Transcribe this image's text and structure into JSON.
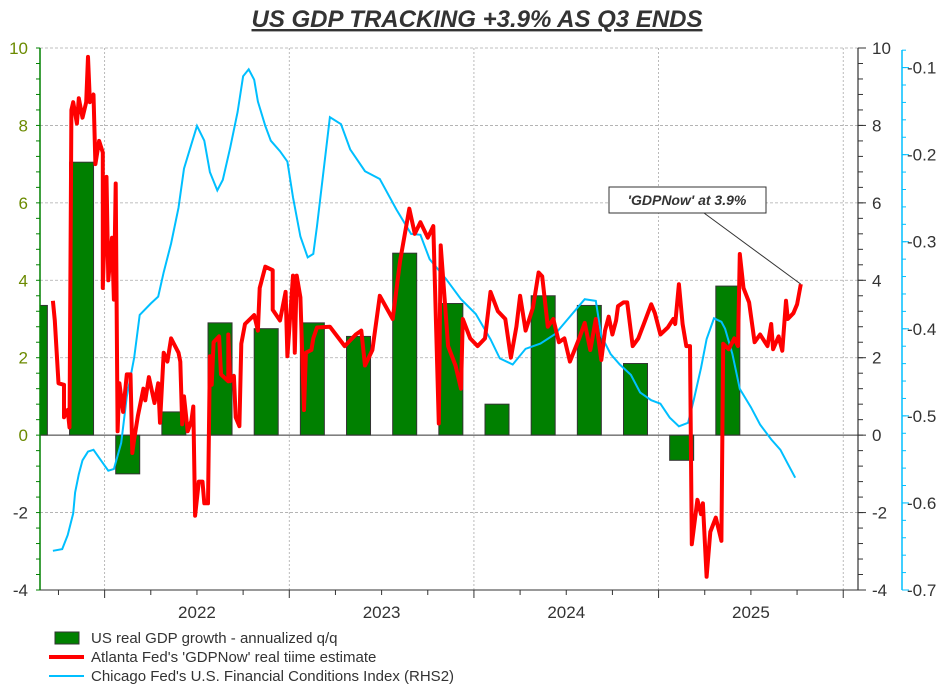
{
  "chart_data": {
    "type": "bar+line",
    "title": "US GDP TRACKING +3.9% AS Q3 ENDS",
    "xlabel": "",
    "x_tick_labels": [
      "2022",
      "2023",
      "2024",
      "2025"
    ],
    "xlim": [
      2021.65,
      2026.08
    ],
    "left_axis": {
      "ylim": [
        -4,
        10
      ],
      "ticks": [
        10,
        8,
        6,
        4,
        2,
        0,
        -2,
        -4
      ],
      "labels": [
        "10",
        "8",
        "6",
        "4",
        "2",
        "0",
        "-2",
        "-4"
      ]
    },
    "right_axis": {
      "ylim": [
        -4,
        10
      ],
      "ticks": [
        10,
        8,
        6,
        4,
        2,
        0,
        -2,
        -4
      ],
      "labels": [
        "10",
        "8",
        "6",
        "4",
        "2",
        "0",
        "-2",
        "-4"
      ]
    },
    "rhs2_axis": {
      "ylim": [
        -0.7,
        -0.0775
      ],
      "ticks": [
        -0.1,
        -0.2,
        -0.3,
        -0.4,
        -0.5,
        -0.6,
        -0.7
      ],
      "labels": [
        "-0.1",
        "-0.2",
        "-0.3",
        "-0.4",
        "-0.5",
        "-0.6",
        "-0.7"
      ]
    },
    "grid": true,
    "legend_position": "bottom-left",
    "colors": {
      "bars": "#008000",
      "gdpnow": "#ff0000",
      "fci": "#00bfff",
      "left_axis": "#008000",
      "rhs2_axis": "#00bfff"
    },
    "bars": {
      "name": "US real GDP growth - annualized q/q",
      "categories": [
        "2021 Q3",
        "2021 Q4",
        "2022 Q1",
        "2022 Q2",
        "2022 Q3",
        "2022 Q4",
        "2023 Q1",
        "2023 Q2",
        "2023 Q3",
        "2023 Q4",
        "2024 Q1",
        "2024 Q2",
        "2024 Q3",
        "2024 Q4",
        "2025 Q1",
        "2025 Q2"
      ],
      "values": [
        3.35,
        7.05,
        -1.0,
        0.6,
        2.9,
        2.75,
        2.9,
        2.55,
        4.7,
        3.4,
        0.8,
        3.6,
        3.35,
        1.85,
        -0.65,
        3.85
      ]
    },
    "series": [
      {
        "name": "Atlanta Fed's 'GDPNow' real tiime estimate",
        "axis": "left",
        "points": [
          [
            2021.72,
            3.47
          ],
          [
            2021.73,
            2.96
          ],
          [
            2021.75,
            1.34
          ],
          [
            2021.78,
            1.3
          ],
          [
            2021.78,
            0.46
          ],
          [
            2021.8,
            0.65
          ],
          [
            2021.81,
            0.2
          ],
          [
            2021.82,
            8.4
          ],
          [
            2021.83,
            8.6
          ],
          [
            2021.85,
            8.05
          ],
          [
            2021.86,
            8.7
          ],
          [
            2021.88,
            8.2
          ],
          [
            2021.9,
            8.6
          ],
          [
            2021.91,
            9.77
          ],
          [
            2021.92,
            8.6
          ],
          [
            2021.94,
            8.8
          ],
          [
            2021.95,
            7.0
          ],
          [
            2021.97,
            7.6
          ],
          [
            2021.99,
            7.3
          ],
          [
            2021.99,
            3.8
          ],
          [
            2022.01,
            6.67
          ],
          [
            2022.02,
            4.0
          ],
          [
            2022.04,
            5.1
          ],
          [
            2022.05,
            3.5
          ],
          [
            2022.06,
            6.5
          ],
          [
            2022.07,
            0.1
          ],
          [
            2022.08,
            1.34
          ],
          [
            2022.1,
            0.6
          ],
          [
            2022.12,
            1.57
          ],
          [
            2022.14,
            1.57
          ],
          [
            2022.15,
            -0.46
          ],
          [
            2022.16,
            -0.1
          ],
          [
            2022.18,
            0.5
          ],
          [
            2022.21,
            1.2
          ],
          [
            2022.22,
            0.9
          ],
          [
            2022.24,
            1.5
          ],
          [
            2022.27,
            0.83
          ],
          [
            2022.29,
            1.34
          ],
          [
            2022.3,
            0.32
          ],
          [
            2022.32,
            2.13
          ],
          [
            2022.34,
            1.9
          ],
          [
            2022.36,
            2.5
          ],
          [
            2022.4,
            2.13
          ],
          [
            2022.41,
            1.9
          ],
          [
            2022.42,
            0.28
          ],
          [
            2022.43,
            1.0
          ],
          [
            2022.45,
            0.1
          ],
          [
            2022.47,
            0.37
          ],
          [
            2022.48,
            0.74
          ],
          [
            2022.49,
            -2.08
          ],
          [
            2022.51,
            -1.2
          ],
          [
            2022.53,
            -1.2
          ],
          [
            2022.54,
            -1.76
          ],
          [
            2022.56,
            -1.76
          ],
          [
            2022.57,
            2.04
          ],
          [
            2022.58,
            1.3
          ],
          [
            2022.59,
            2.4
          ],
          [
            2022.62,
            2.55
          ],
          [
            2022.63,
            1.57
          ],
          [
            2022.67,
            1.39
          ],
          [
            2022.67,
            2.6
          ],
          [
            2022.68,
            1.39
          ],
          [
            2022.7,
            1.53
          ],
          [
            2022.71,
            0.46
          ],
          [
            2022.73,
            0.23
          ],
          [
            2022.74,
            2.36
          ],
          [
            2022.76,
            2.87
          ],
          [
            2022.81,
            3.1
          ],
          [
            2022.83,
            2.7
          ],
          [
            2022.84,
            3.8
          ],
          [
            2022.87,
            4.35
          ],
          [
            2022.91,
            4.26
          ],
          [
            2022.91,
            3.24
          ],
          [
            2022.95,
            2.96
          ],
          [
            2022.98,
            3.7
          ],
          [
            2022.99,
            2.04
          ],
          [
            2023.02,
            4.12
          ],
          [
            2023.03,
            2.13
          ],
          [
            2023.04,
            4.12
          ],
          [
            2023.06,
            3.56
          ],
          [
            2023.08,
            0.65
          ],
          [
            2023.09,
            2.13
          ],
          [
            2023.12,
            2.2
          ],
          [
            2023.13,
            2.5
          ],
          [
            2023.15,
            2.78
          ],
          [
            2023.22,
            2.8
          ],
          [
            2023.3,
            2.3
          ],
          [
            2023.36,
            2.6
          ],
          [
            2023.39,
            2.7
          ],
          [
            2023.41,
            1.8
          ],
          [
            2023.45,
            2.2
          ],
          [
            2023.49,
            3.6
          ],
          [
            2023.56,
            3.0
          ],
          [
            2023.6,
            4.5
          ],
          [
            2023.65,
            5.85
          ],
          [
            2023.68,
            5.2
          ],
          [
            2023.71,
            5.5
          ],
          [
            2023.75,
            5.1
          ],
          [
            2023.78,
            5.4
          ],
          [
            2023.81,
            0.3
          ],
          [
            2023.82,
            4.9
          ],
          [
            2023.86,
            2.3
          ],
          [
            2023.9,
            1.8
          ],
          [
            2023.93,
            1.2
          ],
          [
            2023.94,
            3.0
          ],
          [
            2023.98,
            2.5
          ],
          [
            2024.02,
            2.3
          ],
          [
            2024.06,
            2.5
          ],
          [
            2024.09,
            3.7
          ],
          [
            2024.13,
            3.2
          ],
          [
            2024.17,
            3.0
          ],
          [
            2024.2,
            2.0
          ],
          [
            2024.23,
            2.8
          ],
          [
            2024.25,
            3.6
          ],
          [
            2024.28,
            2.7
          ],
          [
            2024.32,
            3.3
          ],
          [
            2024.35,
            4.2
          ],
          [
            2024.37,
            4.1
          ],
          [
            2024.4,
            2.8
          ],
          [
            2024.43,
            3.0
          ],
          [
            2024.46,
            2.4
          ],
          [
            2024.49,
            2.5
          ],
          [
            2024.52,
            1.9
          ],
          [
            2024.57,
            2.5
          ],
          [
            2024.6,
            2.9
          ],
          [
            2024.63,
            2.2
          ],
          [
            2024.66,
            3.0
          ],
          [
            2024.69,
            1.94
          ],
          [
            2024.71,
            2.7
          ],
          [
            2024.73,
            3.06
          ],
          [
            2024.75,
            2.6
          ],
          [
            2024.77,
            2.96
          ],
          [
            2024.78,
            3.33
          ],
          [
            2024.81,
            3.43
          ],
          [
            2024.83,
            3.43
          ],
          [
            2024.86,
            2.3
          ],
          [
            2024.89,
            2.5
          ],
          [
            2024.92,
            2.87
          ],
          [
            2024.96,
            3.38
          ],
          [
            2024.98,
            3.15
          ],
          [
            2025.01,
            2.6
          ],
          [
            2025.05,
            2.78
          ],
          [
            2025.08,
            3.0
          ],
          [
            2025.09,
            2.87
          ],
          [
            2025.11,
            3.9
          ],
          [
            2025.13,
            2.87
          ],
          [
            2025.15,
            2.3
          ],
          [
            2025.17,
            2.3
          ],
          [
            2025.18,
            -2.82
          ],
          [
            2025.21,
            -1.67
          ],
          [
            2025.23,
            -2.04
          ],
          [
            2025.24,
            -1.76
          ],
          [
            2025.26,
            -3.66
          ],
          [
            2025.28,
            -2.5
          ],
          [
            2025.31,
            -2.13
          ],
          [
            2025.34,
            -2.73
          ],
          [
            2025.35,
            2.36
          ],
          [
            2025.38,
            2.22
          ],
          [
            2025.41,
            2.5
          ],
          [
            2025.43,
            2.3
          ],
          [
            2025.44,
            4.68
          ],
          [
            2025.46,
            3.8
          ],
          [
            2025.49,
            3.43
          ],
          [
            2025.52,
            2.4
          ],
          [
            2025.55,
            2.6
          ],
          [
            2025.59,
            2.3
          ],
          [
            2025.61,
            2.87
          ],
          [
            2025.62,
            2.22
          ],
          [
            2025.65,
            2.55
          ],
          [
            2025.67,
            2.18
          ],
          [
            2025.69,
            3.47
          ],
          [
            2025.7,
            3.0
          ],
          [
            2025.73,
            3.15
          ],
          [
            2025.75,
            3.38
          ],
          [
            2025.77,
            3.9
          ]
        ]
      },
      {
        "name": "Chicago Fed's U.S. Financial Conditions Index (RHS2)",
        "axis": "rhs2",
        "points": [
          [
            2021.72,
            -0.655
          ],
          [
            2021.77,
            -0.653
          ],
          [
            2021.8,
            -0.637
          ],
          [
            2021.83,
            -0.612
          ],
          [
            2021.84,
            -0.588
          ],
          [
            2021.86,
            -0.567
          ],
          [
            2021.88,
            -0.551
          ],
          [
            2021.91,
            -0.541
          ],
          [
            2021.94,
            -0.539
          ],
          [
            2021.98,
            -0.551
          ],
          [
            2022.02,
            -0.563
          ],
          [
            2022.05,
            -0.561
          ],
          [
            2022.09,
            -0.531
          ],
          [
            2022.12,
            -0.478
          ],
          [
            2022.16,
            -0.433
          ],
          [
            2022.19,
            -0.384
          ],
          [
            2022.25,
            -0.371
          ],
          [
            2022.29,
            -0.363
          ],
          [
            2022.32,
            -0.335
          ],
          [
            2022.36,
            -0.302
          ],
          [
            2022.4,
            -0.261
          ],
          [
            2022.43,
            -0.216
          ],
          [
            2022.47,
            -0.188
          ],
          [
            2022.5,
            -0.167
          ],
          [
            2022.54,
            -0.184
          ],
          [
            2022.57,
            -0.22
          ],
          [
            2022.61,
            -0.241
          ],
          [
            2022.64,
            -0.229
          ],
          [
            2022.68,
            -0.192
          ],
          [
            2022.72,
            -0.151
          ],
          [
            2022.75,
            -0.11
          ],
          [
            2022.78,
            -0.102
          ],
          [
            2022.81,
            -0.114
          ],
          [
            2022.83,
            -0.139
          ],
          [
            2022.87,
            -0.167
          ],
          [
            2022.9,
            -0.184
          ],
          [
            2022.95,
            -0.196
          ],
          [
            2022.99,
            -0.208
          ],
          [
            2023.02,
            -0.249
          ],
          [
            2023.06,
            -0.294
          ],
          [
            2023.1,
            -0.318
          ],
          [
            2023.13,
            -0.314
          ],
          [
            2023.15,
            -0.282
          ],
          [
            2023.22,
            -0.157
          ],
          [
            2023.28,
            -0.165
          ],
          [
            2023.33,
            -0.194
          ],
          [
            2023.41,
            -0.219
          ],
          [
            2023.49,
            -0.228
          ],
          [
            2023.58,
            -0.263
          ],
          [
            2023.66,
            -0.291
          ],
          [
            2023.71,
            -0.292
          ],
          [
            2023.76,
            -0.32
          ],
          [
            2023.85,
            -0.343
          ],
          [
            2023.93,
            -0.366
          ],
          [
            2024.01,
            -0.383
          ],
          [
            2024.09,
            -0.412
          ],
          [
            2024.14,
            -0.434
          ],
          [
            2024.21,
            -0.441
          ],
          [
            2024.28,
            -0.423
          ],
          [
            2024.36,
            -0.417
          ],
          [
            2024.44,
            -0.406
          ],
          [
            2024.52,
            -0.386
          ],
          [
            2024.6,
            -0.366
          ],
          [
            2024.66,
            -0.368
          ],
          [
            2024.69,
            -0.408
          ],
          [
            2024.74,
            -0.429
          ],
          [
            2024.79,
            -0.441
          ],
          [
            2024.85,
            -0.453
          ],
          [
            2024.9,
            -0.473
          ],
          [
            2024.96,
            -0.482
          ],
          [
            2025.01,
            -0.486
          ],
          [
            2025.06,
            -0.502
          ],
          [
            2025.11,
            -0.512
          ],
          [
            2025.16,
            -0.508
          ],
          [
            2025.19,
            -0.482
          ],
          [
            2025.23,
            -0.445
          ],
          [
            2025.26,
            -0.412
          ],
          [
            2025.3,
            -0.388
          ],
          [
            2025.34,
            -0.392
          ],
          [
            2025.36,
            -0.4
          ],
          [
            2025.4,
            -0.429
          ],
          [
            2025.44,
            -0.469
          ],
          [
            2025.5,
            -0.49
          ],
          [
            2025.55,
            -0.51
          ],
          [
            2025.61,
            -0.527
          ],
          [
            2025.66,
            -0.539
          ],
          [
            2025.7,
            -0.555
          ],
          [
            2025.74,
            -0.571
          ]
        ]
      }
    ],
    "annotation": {
      "text": "'GDPNow' at 3.9%",
      "points_to": [
        2025.77,
        3.9
      ]
    },
    "legend": [
      "US real GDP growth - annualized q/q",
      "Atlanta Fed's 'GDPNow' real tiime estimate",
      "Chicago Fed's U.S. Financial Conditions Index (RHS2)"
    ]
  }
}
